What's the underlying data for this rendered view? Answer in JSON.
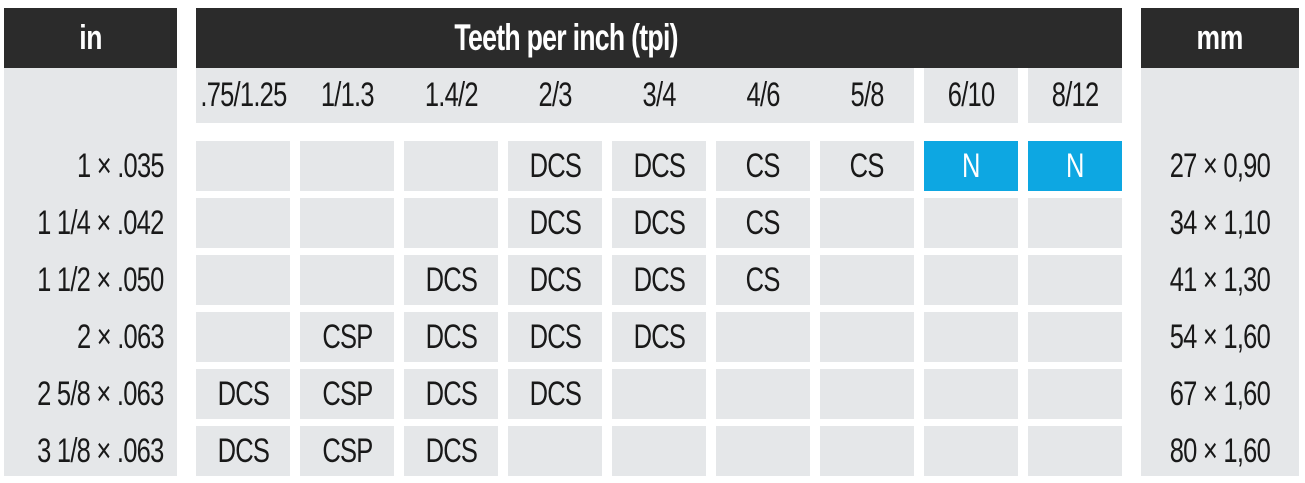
{
  "chart_data": {
    "type": "table",
    "title": "Teeth per inch (tpi)",
    "unit_left": "in",
    "unit_right": "mm",
    "tpi_columns": [
      ".75/1.25",
      "1/1.3",
      "1.4/2",
      "2/3",
      "3/4",
      "4/6",
      "5/8",
      "6/10",
      "8/12"
    ],
    "rows": [
      {
        "in": "1 × .035",
        "cells": [
          "",
          "",
          "",
          "DCS",
          "DCS",
          "CS",
          "CS",
          "N",
          "N"
        ],
        "mm": "27 × 0,90"
      },
      {
        "in": "1 1/4 × .042",
        "cells": [
          "",
          "",
          "",
          "DCS",
          "DCS",
          "CS",
          "",
          "",
          ""
        ],
        "mm": "34 × 1,10"
      },
      {
        "in": "1 1/2 × .050",
        "cells": [
          "",
          "",
          "DCS",
          "DCS",
          "DCS",
          "CS",
          "",
          "",
          ""
        ],
        "mm": "41 × 1,30"
      },
      {
        "in": "2 × .063",
        "cells": [
          "",
          "CSP",
          "DCS",
          "DCS",
          "DCS",
          "",
          "",
          "",
          ""
        ],
        "mm": "54 × 1,60"
      },
      {
        "in": "2 5/8 × .063",
        "cells": [
          "DCS",
          "CSP",
          "DCS",
          "DCS",
          "",
          "",
          "",
          "",
          ""
        ],
        "mm": "67 × 1,60"
      },
      {
        "in": "3 1/8 × .063",
        "cells": [
          "DCS",
          "CSP",
          "DCS",
          "",
          "",
          "",
          "",
          "",
          ""
        ],
        "mm": "80 × 1,60"
      }
    ],
    "highlight_value": "N",
    "colors": {
      "header_bg": "#2b2b2b",
      "header_text": "#ffffff",
      "cell_bg": "#e5e7e9",
      "cell_text": "#191919",
      "highlight_bg": "#0da7e2",
      "highlight_text": "#ffffff"
    }
  }
}
